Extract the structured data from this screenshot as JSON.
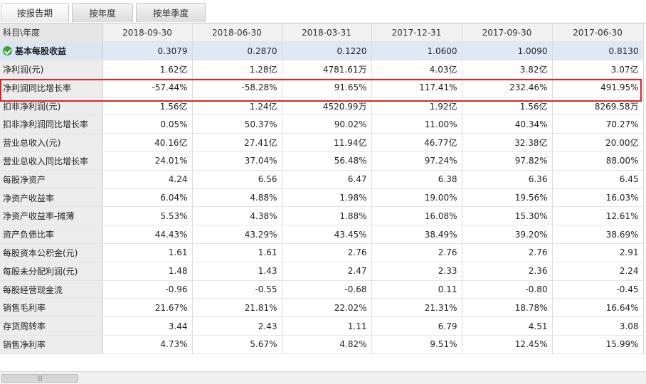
{
  "tabs": [
    "按报告期",
    "按年度",
    "按单季度"
  ],
  "header": {
    "label": "科目\\年度",
    "periods": [
      "2018-09-30",
      "2018-06-30",
      "2018-03-31",
      "2017-12-31",
      "2017-09-30",
      "2017-06-30"
    ]
  },
  "rows": [
    {
      "label": "基本每股收益",
      "values": [
        "0.3079",
        "0.2870",
        "0.1220",
        "1.0600",
        "1.0090",
        "0.8130"
      ]
    },
    {
      "label": "净利润(元)",
      "values": [
        "1.62亿",
        "1.28亿",
        "4781.61万",
        "4.03亿",
        "3.82亿",
        "3.07亿"
      ]
    },
    {
      "label": "净利润同比增长率",
      "values": [
        "-57.44%",
        "-58.28%",
        "91.65%",
        "117.41%",
        "232.46%",
        "491.95%"
      ]
    },
    {
      "label": "扣非净利润(元)",
      "values": [
        "1.56亿",
        "1.24亿",
        "4520.99万",
        "1.92亿",
        "1.56亿",
        "8269.58万"
      ]
    },
    {
      "label": "扣非净利润同比增长率",
      "values": [
        "0.05%",
        "50.37%",
        "90.02%",
        "11.00%",
        "40.34%",
        "70.27%"
      ]
    },
    {
      "label": "营业总收入(元)",
      "values": [
        "40.16亿",
        "27.41亿",
        "11.94亿",
        "46.77亿",
        "32.38亿",
        "20.00亿"
      ]
    },
    {
      "label": "营业总收入同比增长率",
      "values": [
        "24.01%",
        "37.04%",
        "56.48%",
        "97.24%",
        "97.82%",
        "88.00%"
      ]
    },
    {
      "label": "每股净资产",
      "values": [
        "4.24",
        "6.56",
        "6.47",
        "6.38",
        "6.36",
        "6.45"
      ]
    },
    {
      "label": "净资产收益率",
      "values": [
        "6.04%",
        "4.88%",
        "1.98%",
        "19.00%",
        "19.56%",
        "16.03%"
      ]
    },
    {
      "label": "净资产收益率-摊薄",
      "values": [
        "5.53%",
        "4.38%",
        "1.88%",
        "16.08%",
        "15.30%",
        "12.61%"
      ]
    },
    {
      "label": "资产负债比率",
      "values": [
        "44.43%",
        "43.29%",
        "43.45%",
        "38.49%",
        "39.20%",
        "38.69%"
      ]
    },
    {
      "label": "每股资本公积金(元)",
      "values": [
        "1.61",
        "1.61",
        "2.76",
        "2.76",
        "2.76",
        "2.91"
      ]
    },
    {
      "label": "每股未分配利润(元)",
      "values": [
        "1.48",
        "1.43",
        "2.47",
        "2.33",
        "2.36",
        "2.24"
      ]
    },
    {
      "label": "每股经营现金流",
      "values": [
        "-0.96",
        "-0.55",
        "-0.68",
        "0.11",
        "-0.80",
        "-0.45"
      ]
    },
    {
      "label": "销售毛利率",
      "values": [
        "21.67%",
        "21.81%",
        "22.02%",
        "21.31%",
        "18.78%",
        "16.64%"
      ]
    },
    {
      "label": "存货周转率",
      "values": [
        "3.44",
        "2.43",
        "1.11",
        "6.79",
        "4.51",
        "3.08"
      ]
    },
    {
      "label": "销售净利率",
      "values": [
        "4.73%",
        "5.67%",
        "4.82%",
        "9.51%",
        "12.45%",
        "15.99%"
      ]
    }
  ],
  "scrollbar": {
    "grip": "|||"
  },
  "colors": {
    "highlight_border": "#d6262a",
    "check_icon": "#3ca33c",
    "selected_row": "#dfe9f6"
  }
}
